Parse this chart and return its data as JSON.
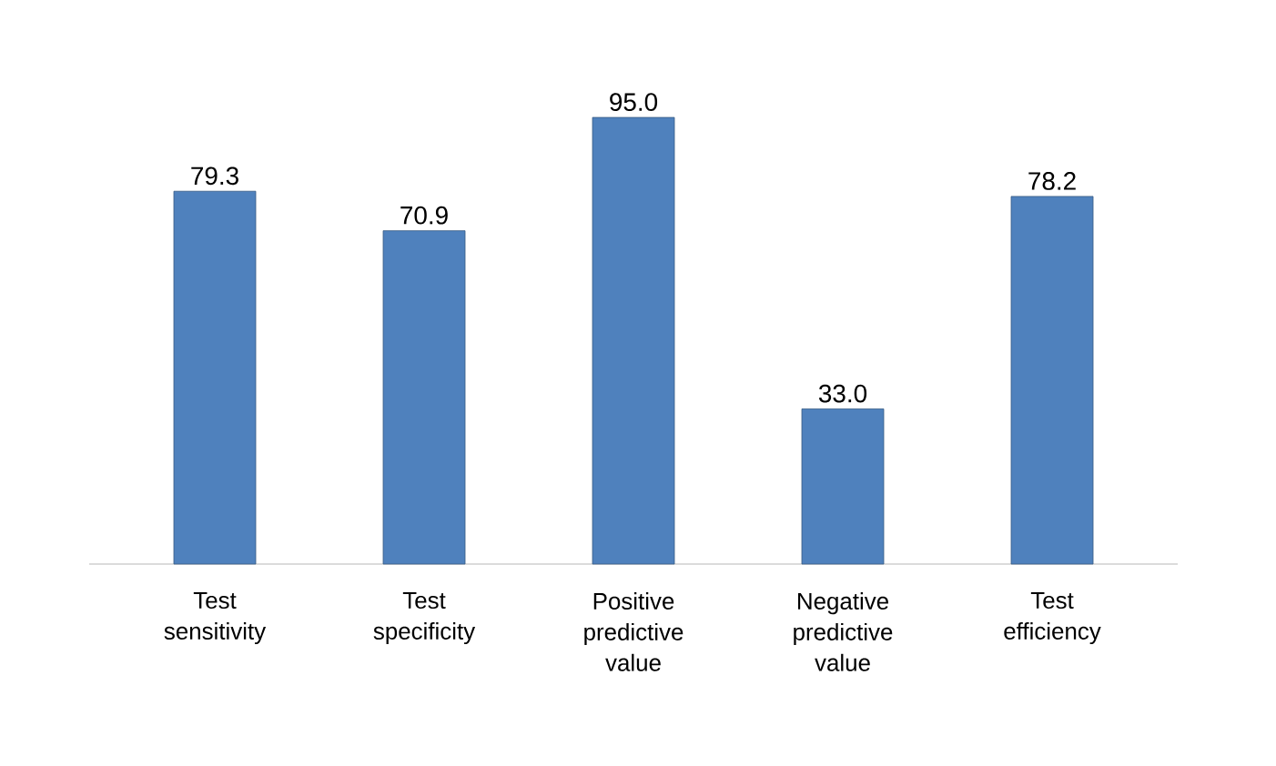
{
  "chart_data": {
    "type": "bar",
    "categories": [
      "Test sensitivity",
      "Test specificity",
      "Positive predictive value",
      "Negative predictive value",
      "Test efficiency"
    ],
    "values": [
      79.3,
      70.9,
      95.0,
      33.0,
      78.2
    ],
    "value_labels": [
      "79.3",
      "70.9",
      "95.0",
      "33.0",
      "78.2"
    ],
    "color": "#4f81bd"
  }
}
